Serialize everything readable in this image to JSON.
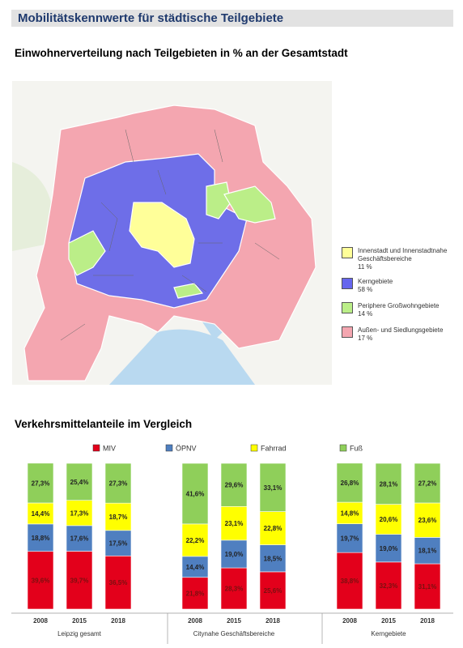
{
  "header": {
    "title": "Mobilitätskennwerte für städtische Teilgebiete"
  },
  "map": {
    "title": "Einwohnerverteilung nach Teilgebieten in % an der Gesamtstadt",
    "legend": [
      {
        "label": "Innenstadt und Innenstadtnahe Geschäftsbereiche",
        "value": "11 %",
        "color": "#ffff99"
      },
      {
        "label": "Kerngebiete",
        "value": "58 %",
        "color": "#6666ee"
      },
      {
        "label": "Periphere Großwohngebiete",
        "value": "14 %",
        "color": "#bbee88"
      },
      {
        "label": "Außen- und Siedlungsgebiete",
        "value": "17 %",
        "color": "#f4a6b0"
      }
    ]
  },
  "chart_data": {
    "type": "stacked-bar",
    "title": "Verkehrsmittelanteile im Vergleich",
    "categories": [
      "2008",
      "2015",
      "2018",
      "2008",
      "2015",
      "2018",
      "2008",
      "2015",
      "2018"
    ],
    "groups": [
      "Leipzig gesamt",
      "Citynahe Geschäftsbereiche",
      "Kerngebiete"
    ],
    "ylim": [
      0,
      100
    ],
    "series": [
      {
        "name": "MIV",
        "color": "#e3001b",
        "values": [
          39.6,
          39.7,
          36.5,
          21.8,
          28.3,
          25.6,
          38.8,
          32.3,
          31.1
        ],
        "value_labels": [
          "39,6%",
          "39,7%",
          "36,5%",
          "21,8%",
          "28,3%",
          "25,6%",
          "38,8%",
          "32,3%",
          "31,1%"
        ]
      },
      {
        "name": "ÖPNV",
        "color": "#4f7fc0",
        "values": [
          18.8,
          17.6,
          17.5,
          14.4,
          19.0,
          18.5,
          19.7,
          19.0,
          18.1
        ],
        "value_labels": [
          "18,8%",
          "17,6%",
          "17,5%",
          "14,4%",
          "19,0%",
          "18,5%",
          "19,7%",
          "19,0%",
          "18,1%"
        ]
      },
      {
        "name": "Fahrrad",
        "color": "#ffff00",
        "values": [
          14.4,
          17.3,
          18.7,
          22.2,
          23.1,
          22.8,
          14.8,
          20.6,
          23.6
        ],
        "value_labels": [
          "14,4%",
          "17,3%",
          "18,7%",
          "22,2%",
          "23,1%",
          "22,8%",
          "14,8%",
          "20,6%",
          "23,6%"
        ]
      },
      {
        "name": "Fuß",
        "color": "#8fcf5a",
        "values": [
          27.3,
          25.4,
          27.3,
          41.6,
          29.6,
          33.1,
          26.8,
          28.1,
          27.2
        ],
        "value_labels": [
          "27,3%",
          "25,4%",
          "27,3%",
          "41,6%",
          "29,6%",
          "33,1%",
          "26,8%",
          "28,1%",
          "27,2%"
        ]
      }
    ]
  }
}
